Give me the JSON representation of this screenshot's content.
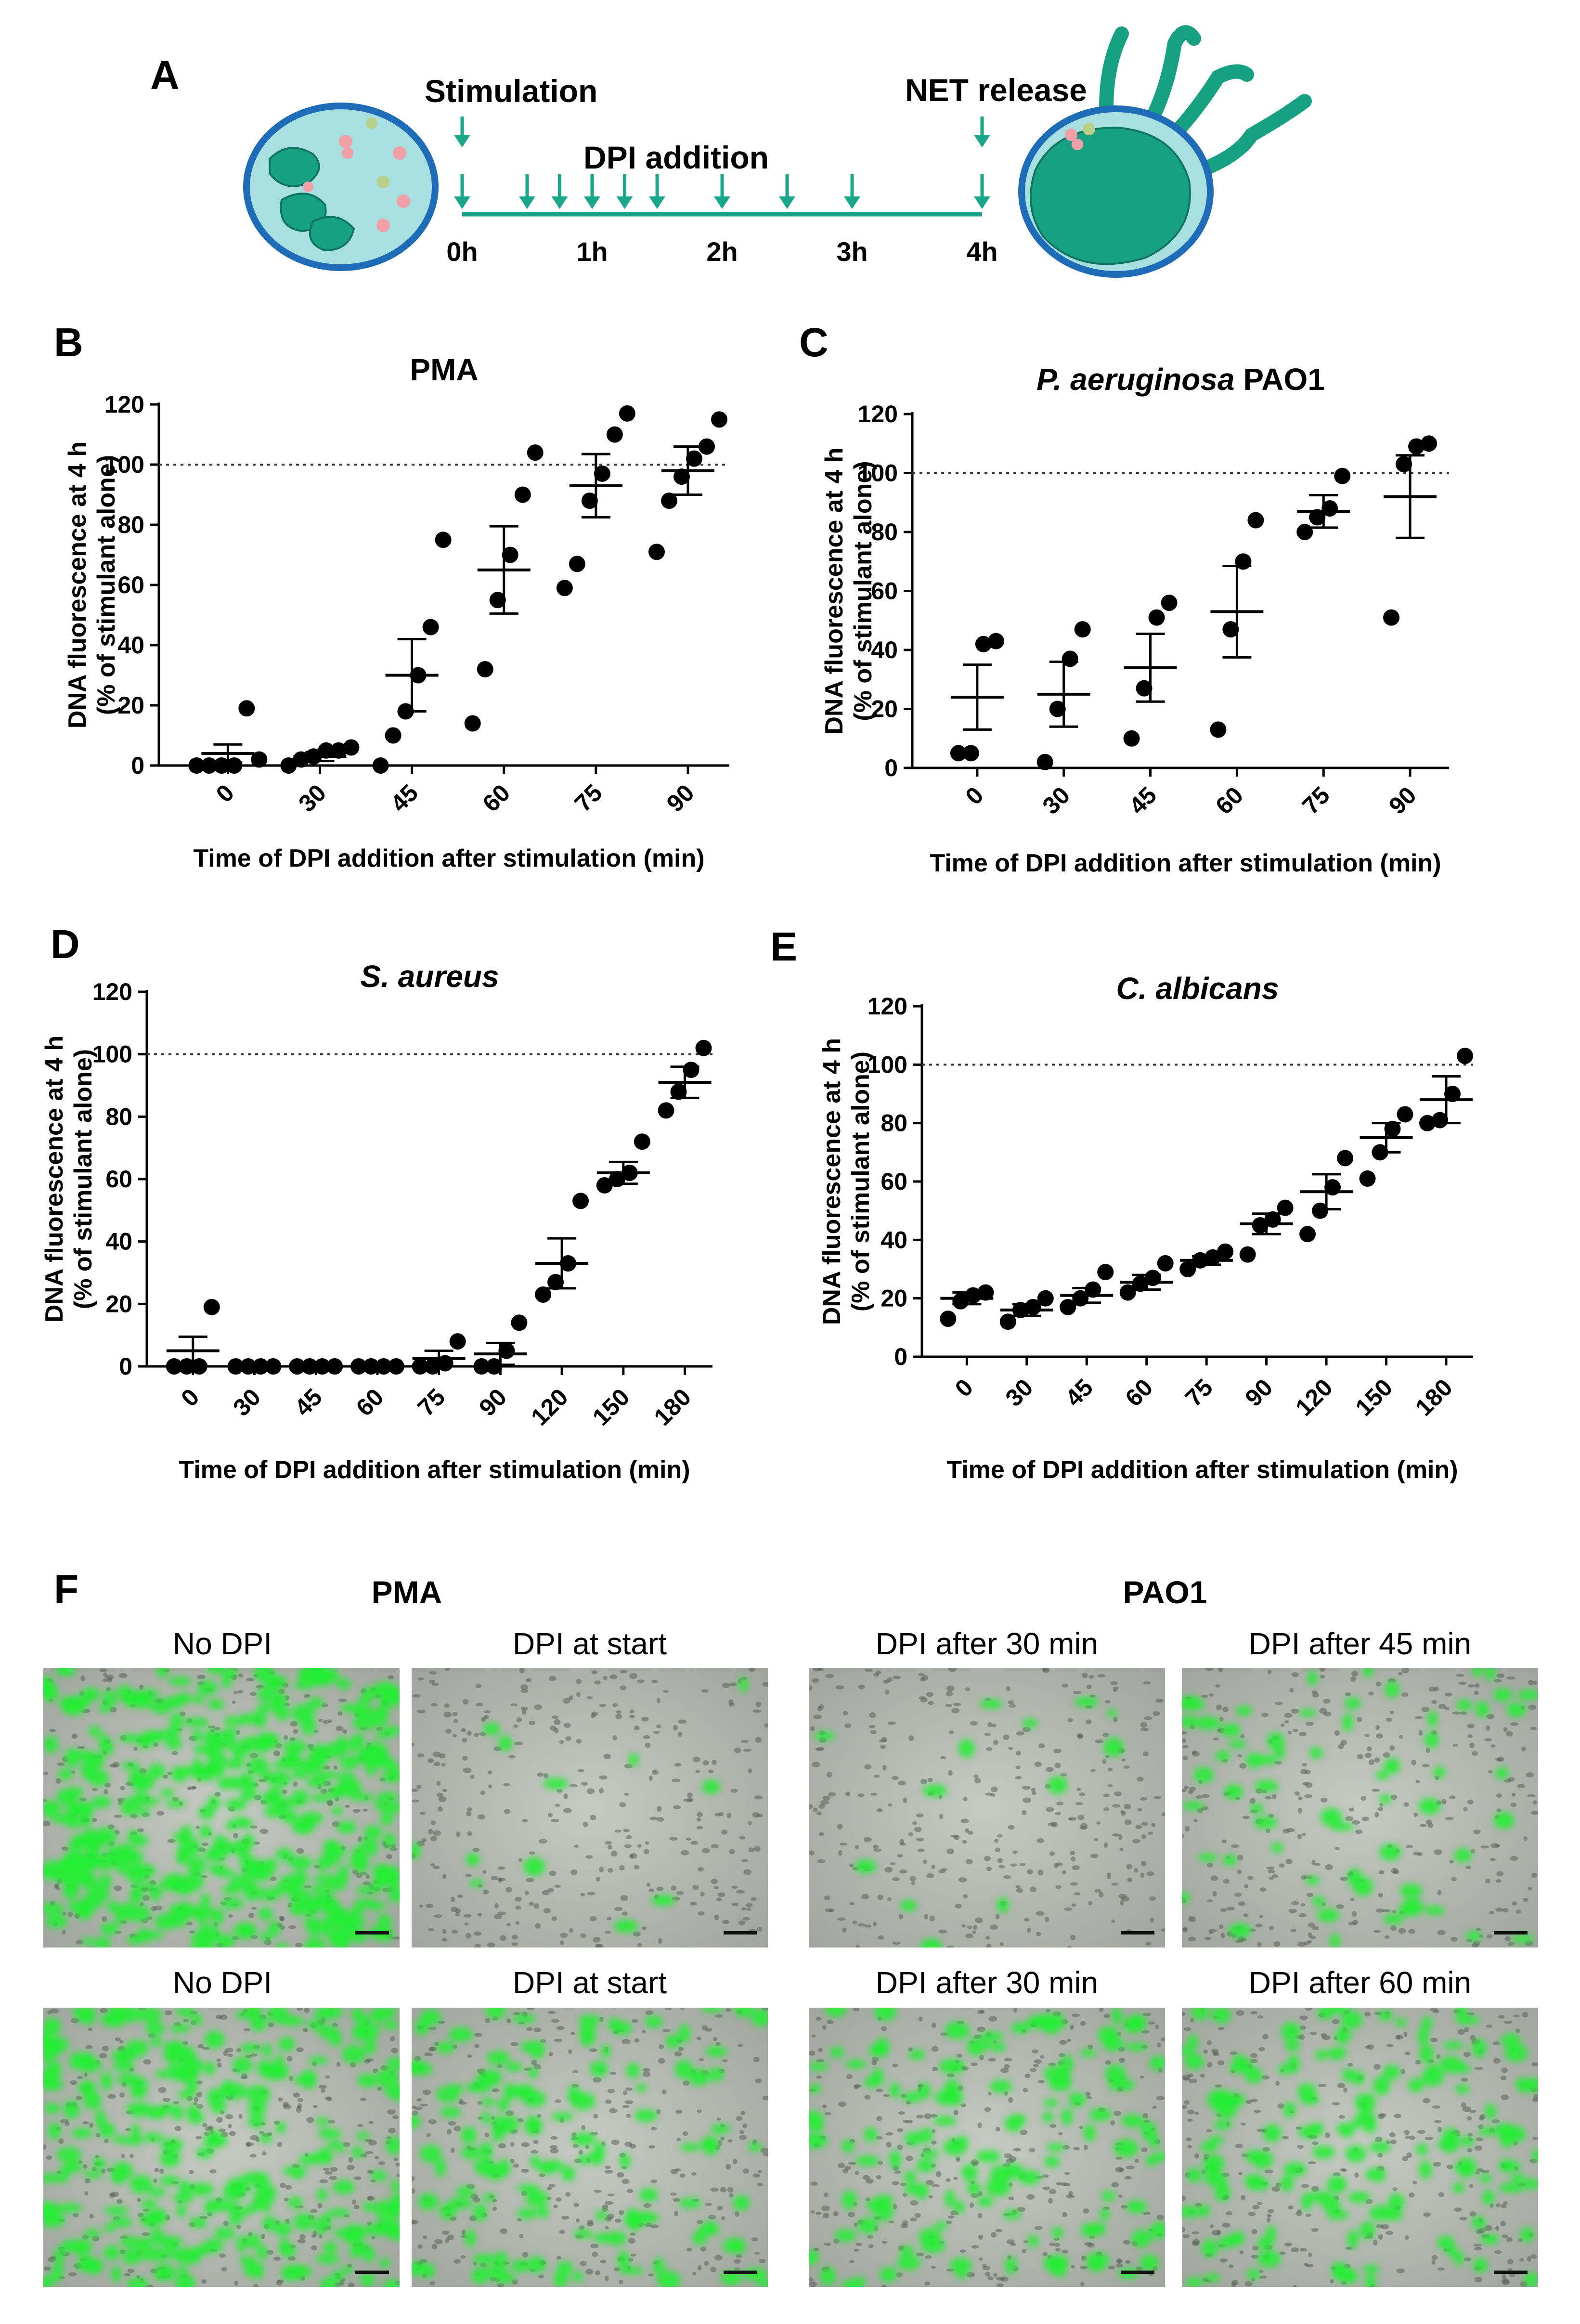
{
  "panel_letters": [
    "A",
    "B",
    "C",
    "D",
    "E",
    "F"
  ],
  "schematic": {
    "stimulation": "Stimulation",
    "dpi_addition": "DPI addition",
    "net_release": "NET release",
    "hours": [
      "0h",
      "1h",
      "2h",
      "3h",
      "4h"
    ],
    "colors": {
      "teal": "#1aa68a",
      "cell_fill": "#a8dfe0",
      "cell_ring": "#1e6bb8",
      "nucleus": "#17a082"
    }
  },
  "chart_data": [
    {
      "id": "B",
      "type": "scatter",
      "title": "PMA",
      "title_italic": false,
      "xlabel": "Time of DPI addition after stimulation (min)",
      "ylabel": [
        "DNA fluorescence at 4 h",
        "(% of stimulant alone)"
      ],
      "categories": [
        "0",
        "30",
        "45",
        "60",
        "75",
        "90"
      ],
      "ylim": [
        0,
        120
      ],
      "yticks": [
        "0",
        "20",
        "40",
        "60",
        "80",
        "100",
        "120"
      ],
      "reference_line": 100,
      "points": [
        [
          0,
          0,
          0,
          0,
          19,
          2
        ],
        [
          0,
          2,
          3,
          5,
          5,
          6
        ],
        [
          0,
          10,
          18,
          30,
          46,
          75
        ],
        [
          14,
          32,
          55,
          70,
          90,
          104
        ],
        [
          59,
          67,
          88,
          97,
          110,
          117
        ],
        [
          71,
          88,
          96,
          102,
          106,
          115
        ]
      ],
      "mean": [
        4,
        3,
        30,
        65,
        93,
        98
      ],
      "sem": [
        3,
        1.5,
        12,
        14.5,
        10.5,
        8
      ]
    },
    {
      "id": "C",
      "type": "scatter",
      "title": "P. aeruginosa PAO1",
      "title_italic": true,
      "italic_part": "P. aeruginosa",
      "plain_part": " PAO1",
      "xlabel": "Time of DPI addition after stimulation (min)",
      "ylabel": [
        "DNA fluorescence at 4 h",
        "(% of stimulant alone)"
      ],
      "categories": [
        "0",
        "30",
        "45",
        "60",
        "75",
        "90"
      ],
      "ylim": [
        0,
        120
      ],
      "yticks": [
        "0",
        "20",
        "40",
        "60",
        "80",
        "100",
        "120"
      ],
      "reference_line": 100,
      "points": [
        [
          5,
          5,
          42,
          43
        ],
        [
          2,
          20,
          37,
          47
        ],
        [
          10,
          27,
          51,
          56
        ],
        [
          13,
          47,
          70,
          84
        ],
        [
          80,
          85,
          88,
          99
        ],
        [
          51,
          103,
          109,
          110
        ]
      ],
      "mean": [
        24,
        25,
        34,
        53,
        87,
        92
      ],
      "sem": [
        11,
        11,
        11.5,
        15.5,
        5.5,
        14
      ]
    },
    {
      "id": "D",
      "type": "scatter",
      "title": "S. aureus",
      "title_italic": true,
      "xlabel": "Time of DPI addition after stimulation (min)",
      "ylabel": [
        "DNA fluorescence at 4 h",
        "(% of stimulant alone)"
      ],
      "categories": [
        "0",
        "30",
        "45",
        "60",
        "75",
        "90",
        "120",
        "150",
        "180"
      ],
      "ylim": [
        0,
        120
      ],
      "yticks": [
        "0",
        "20",
        "40",
        "60",
        "80",
        "100",
        "120"
      ],
      "reference_line": 100,
      "points": [
        [
          0,
          0,
          0,
          19
        ],
        [
          0,
          0,
          0,
          0
        ],
        [
          0,
          0,
          0,
          0
        ],
        [
          0,
          0,
          0,
          0
        ],
        [
          0,
          0,
          1,
          8
        ],
        [
          0,
          0,
          5,
          14
        ],
        [
          23,
          27,
          33,
          53
        ],
        [
          58,
          60,
          62,
          72
        ],
        [
          82,
          88,
          95,
          102
        ]
      ],
      "mean": [
        5,
        0,
        0,
        0,
        2.5,
        4,
        33,
        62,
        91
      ],
      "sem": [
        4.5,
        0,
        0,
        0,
        2.5,
        3.5,
        8,
        3.5,
        5
      ]
    },
    {
      "id": "E",
      "type": "scatter",
      "title": "C. albicans",
      "title_italic": true,
      "xlabel": "Time of DPI addition after stimulation (min)",
      "ylabel": [
        "DNA fluorescence at 4 h",
        "(% of stimulant alone)"
      ],
      "categories": [
        "0",
        "30",
        "45",
        "60",
        "75",
        "90",
        "120",
        "150",
        "180"
      ],
      "ylim": [
        0,
        120
      ],
      "yticks": [
        "0",
        "20",
        "40",
        "60",
        "80",
        "100",
        "120"
      ],
      "reference_line": 100,
      "points": [
        [
          13,
          19,
          21,
          22
        ],
        [
          12,
          16,
          17,
          20
        ],
        [
          17,
          20,
          23,
          29
        ],
        [
          22,
          25,
          27,
          32
        ],
        [
          30,
          33,
          34,
          36
        ],
        [
          35,
          45,
          47,
          51
        ],
        [
          42,
          50,
          58,
          68
        ],
        [
          61,
          70,
          78,
          83
        ],
        [
          80,
          81,
          90,
          103
        ]
      ],
      "mean": [
        20,
        16,
        21,
        25.5,
        33,
        45.5,
        56.5,
        75,
        88
      ],
      "sem": [
        2,
        2,
        2.5,
        2.5,
        1.5,
        3.5,
        6,
        5,
        8
      ]
    }
  ],
  "micrographs": {
    "groups": [
      "PMA",
      "PAO1"
    ],
    "labels": [
      "No DPI",
      "DPI at start",
      "DPI after 30 min",
      "DPI after 45 min",
      "No DPI",
      "DPI at start",
      "DPI after 30 min",
      "DPI after 60 min"
    ],
    "green_coverage": [
      0.85,
      0.03,
      0.03,
      0.15,
      0.6,
      0.3,
      0.3,
      0.35
    ],
    "colors": {
      "green": "#22ee33",
      "background": "#b5b8b2",
      "cell": "#5c605a"
    }
  }
}
